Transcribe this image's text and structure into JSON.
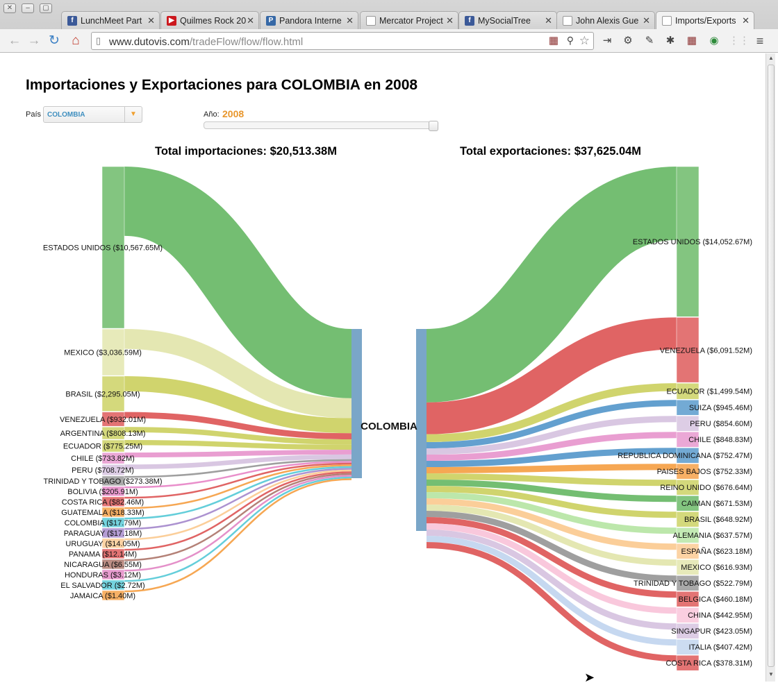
{
  "browser": {
    "tabs": [
      {
        "title": "LunchMeet Part",
        "icon": "facebook-icon",
        "color": "#3b5998",
        "glyph": "f",
        "active": false
      },
      {
        "title": "Quilmes Rock 20",
        "icon": "youtube-icon",
        "color": "#cc181e",
        "glyph": "▶",
        "active": false
      },
      {
        "title": "Pandora Interne",
        "icon": "pandora-icon",
        "color": "#3668a6",
        "glyph": "P",
        "active": false
      },
      {
        "title": "Mercator Project",
        "icon": "page-icon",
        "color": "#ffffff",
        "glyph": "",
        "active": false
      },
      {
        "title": "MySocialTree",
        "icon": "facebook-icon",
        "color": "#3b5998",
        "glyph": "f",
        "active": false
      },
      {
        "title": "John Alexis Gue",
        "icon": "page-icon",
        "color": "#ffffff",
        "glyph": "",
        "active": false
      },
      {
        "title": "Imports/Exports",
        "icon": "page-icon",
        "color": "#ffffff",
        "glyph": "",
        "active": true
      }
    ],
    "url_host": "www.dutovis.com",
    "url_path": "/tradeFlow/flow/flow.html"
  },
  "page": {
    "title": "Importaciones y Exportaciones para COLOMBIA en 2008",
    "country_label": "País",
    "country_value": "COLOMBIA",
    "year_label": "Año:",
    "year_value": "2008",
    "year_slider_fraction": 1.0,
    "imports_total": "Total importaciones: $20,513.38M",
    "exports_total": "Total exportaciones: $37,625.04M",
    "center_label": "COLOMBIA"
  },
  "chart_data": {
    "type": "sankey",
    "center": "COLOMBIA",
    "imports": [
      {
        "label": "ESTADOS UNIDOS ($10,567.65M)",
        "value": 10567.65,
        "color": "#6dbb6a"
      },
      {
        "label": "MEXICO ($3,036.59M)",
        "value": 3036.59,
        "color": "#e3e6ae"
      },
      {
        "label": "BRASIL ($2,295.05M)",
        "value": 2295.05,
        "color": "#cdd265"
      },
      {
        "label": "VENEZUELA ($932.01M)",
        "value": 932.01,
        "color": "#de5c5c"
      },
      {
        "label": "ARGENTINA ($808.13M)",
        "value": 808.13,
        "color": "#cdd265"
      },
      {
        "label": "ECUADOR ($775.25M)",
        "value": 775.25,
        "color": "#cdd265"
      },
      {
        "label": "CHILE ($733.82M)",
        "value": 733.82,
        "color": "#e899cf"
      },
      {
        "label": "PERU ($708.72M)",
        "value": 708.72,
        "color": "#d7c4e0"
      },
      {
        "label": "TRINIDAD Y TOBAGO ($273.38M)",
        "value": 273.38,
        "color": "#9a9a9a"
      },
      {
        "label": "BOLIVIA ($205.91M)",
        "value": 205.91,
        "color": "#e889c8"
      },
      {
        "label": "COSTA RICA ($82.46M)",
        "value": 82.46,
        "color": "#de5c5c"
      },
      {
        "label": "GUATEMALA ($18.33M)",
        "value": 18.33,
        "color": "#f6a24a"
      },
      {
        "label": "COLOMBIA ($17.79M)",
        "value": 17.79,
        "color": "#5ccbd8"
      },
      {
        "label": "PARAGUAY ($17.18M)",
        "value": 17.18,
        "color": "#a88ccd"
      },
      {
        "label": "URUGUAY ($14.05M)",
        "value": 14.05,
        "color": "#fbcb94"
      },
      {
        "label": "PANAMA ($12.14M)",
        "value": 12.14,
        "color": "#de5c5c"
      },
      {
        "label": "NICARAGUA ($6.55M)",
        "value": 6.55,
        "color": "#b07a70"
      },
      {
        "label": "HONDURAS ($3.12M)",
        "value": 3.12,
        "color": "#e38ac6"
      },
      {
        "label": "EL SALVADOR ($2.72M)",
        "value": 2.72,
        "color": "#5ccbd8"
      },
      {
        "label": "JAMAICA ($1.40M)",
        "value": 1.4,
        "color": "#f6a24a"
      }
    ],
    "exports": [
      {
        "label": "ESTADOS UNIDOS ($14,052.67M)",
        "value": 14052.67,
        "color": "#6dbb6a"
      },
      {
        "label": "VENEZUELA ($6,091.52M)",
        "value": 6091.52,
        "color": "#de5c5c"
      },
      {
        "label": "ECUADOR ($1,499.54M)",
        "value": 1499.54,
        "color": "#cdd265"
      },
      {
        "label": "SUIZA ($945.46M)",
        "value": 945.46,
        "color": "#5b9bcc"
      },
      {
        "label": "PERU ($854.60M)",
        "value": 854.6,
        "color": "#d7c4e0"
      },
      {
        "label": "CHILE ($848.83M)",
        "value": 848.83,
        "color": "#e899cf"
      },
      {
        "label": "REPUBLICA DOMINICANA ($752.47M)",
        "value": 752.47,
        "color": "#5b9bcc"
      },
      {
        "label": "PAISES BAJOS ($752.33M)",
        "value": 752.33,
        "color": "#f6a24a"
      },
      {
        "label": "REINO UNIDO ($676.64M)",
        "value": 676.64,
        "color": "#cdd265"
      },
      {
        "label": "CAIMAN ($671.53M)",
        "value": 671.53,
        "color": "#6dbb6a"
      },
      {
        "label": "BRASIL ($648.92M)",
        "value": 648.92,
        "color": "#cdd265"
      },
      {
        "label": "ALEMANIA ($637.57M)",
        "value": 637.57,
        "color": "#b8e6a7"
      },
      {
        "label": "ESPAÑA ($623.18M)",
        "value": 623.18,
        "color": "#fbcb94"
      },
      {
        "label": "MEXICO ($616.93M)",
        "value": 616.93,
        "color": "#e3e6ae"
      },
      {
        "label": "TRINIDAD Y TOBAGO ($522.79M)",
        "value": 522.79,
        "color": "#9a9a9a"
      },
      {
        "label": "BELGICA ($460.18M)",
        "value": 460.18,
        "color": "#de5c5c"
      },
      {
        "label": "CHINA ($442.95M)",
        "value": 442.95,
        "color": "#f9c5da"
      },
      {
        "label": "SINGAPUR ($423.05M)",
        "value": 423.05,
        "color": "#d7c4e0"
      },
      {
        "label": "ITALIA ($407.42M)",
        "value": 407.42,
        "color": "#c3d6ef"
      },
      {
        "label": "COSTA RICA ($378.31M)",
        "value": 378.31,
        "color": "#de5c5c"
      }
    ]
  }
}
